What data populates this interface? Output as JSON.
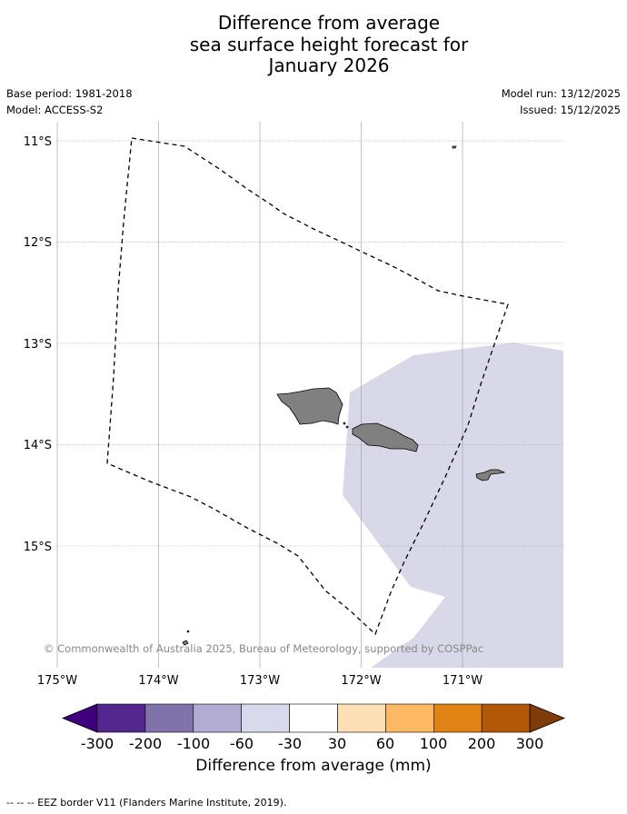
{
  "title_lines": [
    "Difference from average",
    "sea surface height forecast for",
    "January 2026"
  ],
  "base_period": "Base period: 1981-2018",
  "model": "Model: ACCESS-S2",
  "model_run": "Model run: 13/12/2025",
  "issued": "Issued: 15/12/2025",
  "map": {
    "lon_ticks": [
      "175°W",
      "174°W",
      "173°W",
      "172°W",
      "171°W"
    ],
    "lat_ticks": [
      "11°S",
      "12°S",
      "13°S",
      "14°S",
      "15°S"
    ],
    "copyright": "© Commonwealth of Australia 2025, Bureau of Meteorology, supported by COSPPac",
    "anomaly_region_color": "#d8d8e9",
    "land_color": "#808080",
    "eez_line_style": "dashed"
  },
  "colorbar": {
    "title": "Difference from average (mm)",
    "tick_labels": [
      "-300",
      "-200",
      "-100",
      "-60",
      "-30",
      "30",
      "60",
      "100",
      "200",
      "300"
    ],
    "colors": [
      "#3f007d",
      "#54278f",
      "#8073ac",
      "#b2abd2",
      "#d8daeb",
      "#ffffff",
      "#fee0b6",
      "#fdb863",
      "#e08214",
      "#b35806",
      "#7f3b08"
    ]
  },
  "footnote": "--  --  -- EEZ border V11 (Flanders Marine Institute, 2019)."
}
